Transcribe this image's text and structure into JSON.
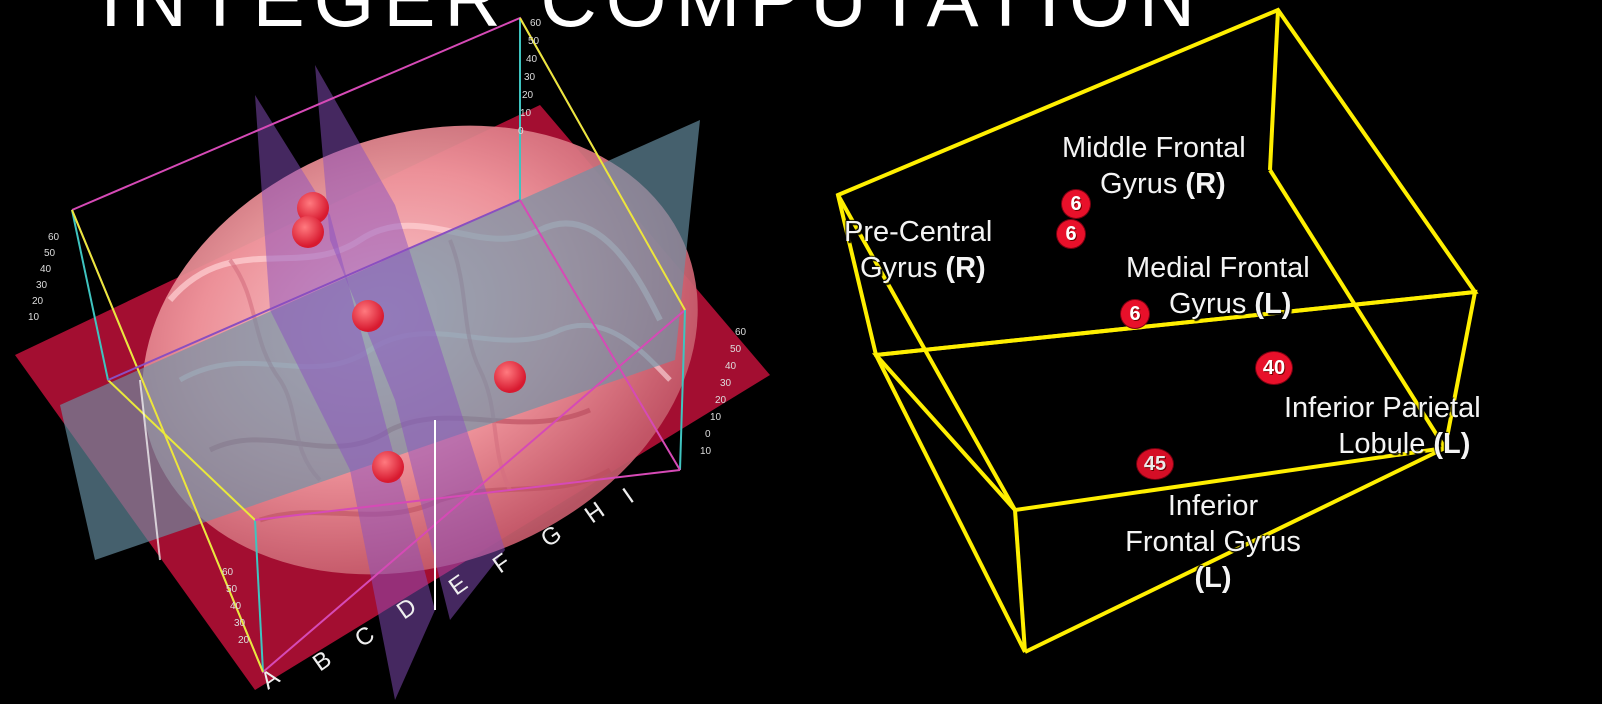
{
  "title": "INTEGER COMPUTATION",
  "brain_view": {
    "colors": {
      "sagittal_plane": "#8a4fc0",
      "coronal_plane": "#6a93a8",
      "axial_plane": "#c0103a",
      "focus_point": "#e8303e",
      "brain": "#f2a6a8"
    },
    "axis_letters": [
      "A",
      "B",
      "C",
      "D",
      "E",
      "F",
      "G",
      "H",
      "I"
    ],
    "axis_ticks": [
      "60",
      "50",
      "40",
      "30",
      "20",
      "10",
      "0",
      "10",
      "20",
      "30",
      "40"
    ],
    "focus_point_count": 5
  },
  "box_view": {
    "box_color": "#ffef00",
    "badge_color": "#e8102a",
    "regions": [
      {
        "line1": "Middle Frontal",
        "line2": "Gyrus",
        "side": "(R)",
        "ba": "6"
      },
      {
        "line1": "Pre-Central",
        "line2": "Gyrus",
        "side": "(R)",
        "ba": "6"
      },
      {
        "line1": "Medial Frontal",
        "line2": "Gyrus",
        "side": "(L)",
        "ba": "6"
      },
      {
        "line1": "Inferior Parietal",
        "line2": "Lobule",
        "side": "(L)",
        "ba": "40"
      },
      {
        "line1": "Inferior",
        "line2": "Frontal Gyrus",
        "side": "(L)",
        "ba": "45"
      }
    ]
  }
}
